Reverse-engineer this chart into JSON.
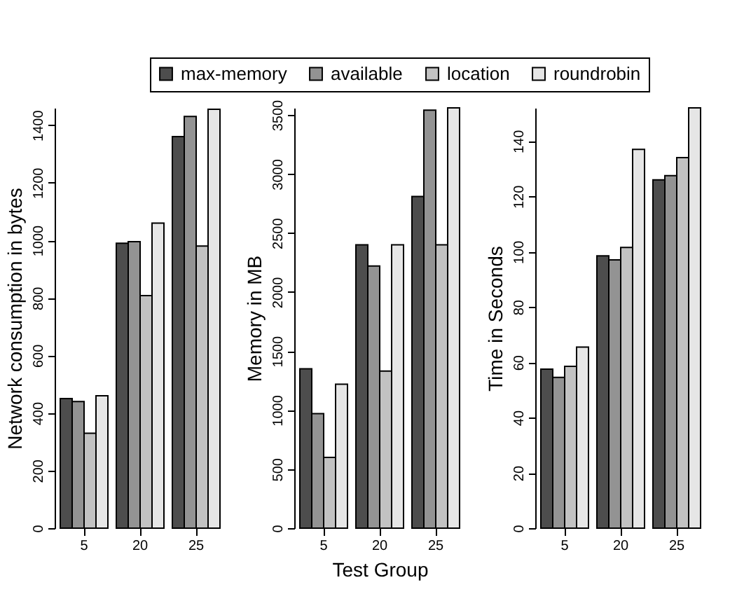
{
  "chart_data": [
    {
      "type": "bar",
      "categories": [
        "5",
        "20",
        "25"
      ],
      "ylabel": "Network consumption in bytes",
      "ylim": [
        0,
        1460
      ],
      "yticks": [
        0,
        200,
        400,
        600,
        800,
        1000,
        1200,
        1400
      ],
      "legend": "top",
      "series": [
        {
          "name": "max-memory",
          "color": "#4d4d4d",
          "values": [
            450,
            990,
            1360
          ]
        },
        {
          "name": "available",
          "color": "#939393",
          "values": [
            440,
            995,
            1430
          ]
        },
        {
          "name": "location",
          "color": "#c2c2c2",
          "values": [
            330,
            808,
            980
          ]
        },
        {
          "name": "roundrobin",
          "color": "#e6e6e6",
          "values": [
            460,
            1060,
            1455
          ]
        }
      ]
    },
    {
      "type": "bar",
      "categories": [
        "5",
        "20",
        "25"
      ],
      "xlabel": "Test Group",
      "ylabel": "Memory in MB",
      "ylim": [
        0,
        3560
      ],
      "yticks": [
        0,
        500,
        1000,
        1500,
        2000,
        2500,
        3000,
        3500
      ],
      "series": [
        {
          "color": "#4d4d4d",
          "values": [
            1350,
            2400,
            2810
          ]
        },
        {
          "color": "#939393",
          "values": [
            970,
            2220,
            3540
          ]
        },
        {
          "color": "#c2c2c2",
          "values": [
            600,
            1330,
            2400
          ]
        },
        {
          "color": "#e6e6e6",
          "values": [
            1220,
            2400,
            3560
          ]
        }
      ]
    },
    {
      "type": "bar",
      "categories": [
        "5",
        "20",
        "25"
      ],
      "ylabel": "Time in Seconds",
      "ylim": [
        0,
        152
      ],
      "yticks": [
        0,
        20,
        40,
        60,
        80,
        100,
        120,
        140
      ],
      "series": [
        {
          "color": "#4d4d4d",
          "values": [
            57.5,
            98.5,
            126
          ]
        },
        {
          "color": "#939393",
          "values": [
            54.5,
            97,
            127.5
          ]
        },
        {
          "color": "#c2c2c2",
          "values": [
            58.5,
            101.5,
            134
          ]
        },
        {
          "color": "#e6e6e6",
          "values": [
            65.5,
            137,
            152
          ]
        }
      ]
    }
  ]
}
